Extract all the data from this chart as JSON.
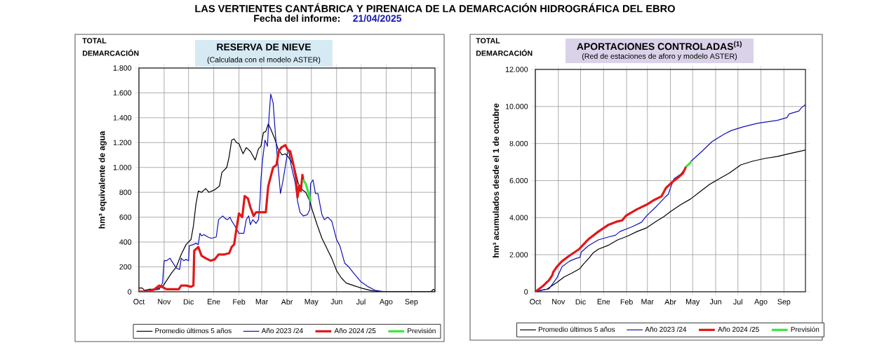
{
  "chart_data": [
    {
      "type": "line",
      "title": "RESERVA DE NIEVE",
      "subtitle": "(Calculada con el modelo ASTER)",
      "ylabel": "hm³ equivalente de agua",
      "annotations": [
        "LAS VERTIENTES CANTÁBRICA Y PIRENAICA DE LA DEMARCACIÓN HIDROGRÁFICA DEL EBRO",
        "Fecha del informe:",
        "21/04/2025",
        "TOTAL DEMARCACIÓN"
      ],
      "xlim": [
        "2024-10-01",
        "2025-09-30"
      ],
      "xticks": [
        {
          "value": "2024-10-01",
          "label": "Oct"
        },
        {
          "value": "2024-11-01",
          "label": "Nov"
        },
        {
          "value": "2024-12-01",
          "label": "Dic"
        },
        {
          "value": "2025-01-01",
          "label": "Ene"
        },
        {
          "value": "2025-02-01",
          "label": "Feb"
        },
        {
          "value": "2025-03-01",
          "label": "Mar"
        },
        {
          "value": "2025-04-01",
          "label": "Abr"
        },
        {
          "value": "2025-05-01",
          "label": "May"
        },
        {
          "value": "2025-06-01",
          "label": "Jun"
        },
        {
          "value": "2025-07-01",
          "label": "Jul"
        },
        {
          "value": "2025-08-01",
          "label": "Ago"
        },
        {
          "value": "2025-09-01",
          "label": "Sep"
        }
      ],
      "ylim": [
        0,
        1800
      ],
      "yticks": [
        {
          "value": 0,
          "label": "0"
        },
        {
          "value": 200,
          "label": "200"
        },
        {
          "value": 400,
          "label": "400"
        },
        {
          "value": 600,
          "label": "600"
        },
        {
          "value": 800,
          "label": "800"
        },
        {
          "value": 1000,
          "label": "1.000"
        },
        {
          "value": 1200,
          "label": "1.200"
        },
        {
          "value": 1400,
          "label": "1.400"
        },
        {
          "value": 1600,
          "label": "1.600"
        },
        {
          "value": 1800,
          "label": "1.800"
        }
      ],
      "grid": true,
      "legend": "bottom",
      "series": [
        {
          "name": "Promedio últimos 5 años",
          "color": "#000000",
          "x": [
            "2024-10-01",
            "2024-10-05",
            "2024-10-08",
            "2024-10-14",
            "2024-10-20",
            "2024-10-26",
            "2024-10-31",
            "2024-11-05",
            "2024-11-10",
            "2024-11-16",
            "2024-11-22",
            "2024-11-28",
            "2024-12-04",
            "2024-12-07",
            "2024-12-10",
            "2024-12-13",
            "2024-12-17",
            "2024-12-22",
            "2024-12-26",
            "2025-01-02",
            "2025-01-08",
            "2025-01-11",
            "2025-01-17",
            "2025-01-20",
            "2025-01-23",
            "2025-01-26",
            "2025-01-29",
            "2025-02-01",
            "2025-02-06",
            "2025-02-10",
            "2025-02-15",
            "2025-02-21",
            "2025-02-25",
            "2025-02-28",
            "2025-03-03",
            "2025-03-06",
            "2025-03-09",
            "2025-03-12",
            "2025-03-17",
            "2025-03-21",
            "2025-03-26",
            "2025-03-30",
            "2025-04-02",
            "2025-04-07",
            "2025-04-11",
            "2025-04-15",
            "2025-04-20",
            "2025-04-24",
            "2025-04-29",
            "2025-05-02",
            "2025-05-08",
            "2025-05-14",
            "2025-05-20",
            "2025-05-26",
            "2025-06-01",
            "2025-06-07",
            "2025-06-13",
            "2025-06-22",
            "2025-07-01",
            "2025-07-13",
            "2025-07-24",
            "2025-07-30",
            "2025-09-25",
            "2025-09-28",
            "2025-09-30"
          ],
          "values": [
            30,
            30,
            10,
            20,
            20,
            30,
            50,
            100,
            150,
            200,
            300,
            380,
            420,
            530,
            700,
            810,
            800,
            830,
            800,
            820,
            850,
            960,
            1000,
            1090,
            1220,
            1230,
            1200,
            1190,
            1110,
            1160,
            1130,
            1060,
            1150,
            1170,
            1280,
            1290,
            1350,
            1310,
            1230,
            1150,
            1100,
            1110,
            1090,
            1040,
            980,
            870,
            820,
            800,
            730,
            660,
            540,
            430,
            350,
            270,
            170,
            110,
            70,
            50,
            30,
            10,
            0,
            0,
            0,
            20,
            10
          ]
        },
        {
          "name": "Año 2023 /24",
          "color": "#1010b8",
          "x": [
            "2024-10-01",
            "2024-10-17",
            "2024-10-26",
            "2024-10-30",
            "2024-11-01",
            "2024-11-04",
            "2024-11-08",
            "2024-11-11",
            "2024-11-16",
            "2024-11-20",
            "2024-11-22",
            "2024-11-25",
            "2024-11-28",
            "2024-12-01",
            "2024-12-02",
            "2024-12-07",
            "2024-12-10",
            "2024-12-13",
            "2024-12-15",
            "2024-12-17",
            "2024-12-20",
            "2024-12-25",
            "2024-12-29",
            "2025-01-04",
            "2025-01-07",
            "2025-01-12",
            "2025-01-15",
            "2025-01-18",
            "2025-01-21",
            "2025-01-23",
            "2025-01-26",
            "2025-02-01",
            "2025-02-07",
            "2025-02-10",
            "2025-02-13",
            "2025-02-15",
            "2025-02-18",
            "2025-02-22",
            "2025-02-25",
            "2025-02-27",
            "2025-02-28",
            "2025-03-02",
            "2025-03-05",
            "2025-03-08",
            "2025-03-10",
            "2025-03-12",
            "2025-03-15",
            "2025-03-18",
            "2025-03-21",
            "2025-03-24",
            "2025-03-27",
            "2025-04-02",
            "2025-04-03",
            "2025-04-06",
            "2025-04-11",
            "2025-04-14",
            "2025-04-17",
            "2025-04-21",
            "2025-04-26",
            "2025-04-29",
            "2025-04-30",
            "2025-05-03",
            "2025-05-06",
            "2025-05-09",
            "2025-05-14",
            "2025-05-17",
            "2025-05-21",
            "2025-05-26",
            "2025-06-01",
            "2025-06-05",
            "2025-06-11",
            "2025-06-16",
            "2025-06-22",
            "2025-07-01",
            "2025-07-10",
            "2025-07-19",
            "2025-07-31",
            "2025-08-06",
            "2025-09-25",
            "2025-09-28",
            "2025-09-30"
          ],
          "values": [
            0,
            10,
            20,
            70,
            250,
            250,
            270,
            240,
            190,
            180,
            270,
            250,
            260,
            250,
            370,
            380,
            390,
            380,
            470,
            450,
            460,
            440,
            430,
            440,
            580,
            610,
            590,
            580,
            600,
            570,
            540,
            470,
            470,
            580,
            610,
            540,
            580,
            550,
            580,
            750,
            900,
            1060,
            1220,
            1170,
            1410,
            1590,
            1520,
            1250,
            1020,
            790,
            890,
            1130,
            1140,
            1020,
            880,
            730,
            640,
            610,
            620,
            660,
            870,
            900,
            790,
            790,
            620,
            580,
            600,
            570,
            420,
            370,
            230,
            200,
            150,
            80,
            40,
            10,
            0,
            0,
            0,
            0,
            0
          ]
        },
        {
          "name": "Año 2024 /25",
          "color": "#e01818",
          "x": [
            "2024-10-01",
            "2024-10-11",
            "2024-10-20",
            "2024-10-26",
            "2024-10-29",
            "2024-11-04",
            "2024-11-13",
            "2024-11-19",
            "2024-11-22",
            "2024-11-28",
            "2024-12-04",
            "2024-12-07",
            "2024-12-08",
            "2024-12-13",
            "2024-12-17",
            "2024-12-22",
            "2024-12-28",
            "2025-01-02",
            "2025-01-07",
            "2025-01-14",
            "2025-01-20",
            "2025-01-23",
            "2025-01-26",
            "2025-01-29",
            "2025-02-01",
            "2025-02-05",
            "2025-02-08",
            "2025-02-12",
            "2025-02-15",
            "2025-02-19",
            "2025-02-22",
            "2025-02-28",
            "2025-03-06",
            "2025-03-09",
            "2025-03-11",
            "2025-03-15",
            "2025-03-19",
            "2025-03-22",
            "2025-03-25",
            "2025-03-30",
            "2025-04-02",
            "2025-04-05",
            "2025-04-09",
            "2025-04-12",
            "2025-04-14",
            "2025-04-16",
            "2025-04-18",
            "2025-04-20",
            "2025-04-21"
          ],
          "values": [
            0,
            0,
            20,
            50,
            40,
            20,
            20,
            20,
            50,
            50,
            40,
            50,
            330,
            360,
            290,
            270,
            250,
            260,
            300,
            300,
            310,
            360,
            380,
            510,
            630,
            600,
            770,
            750,
            680,
            610,
            640,
            640,
            640,
            850,
            900,
            1000,
            1020,
            1130,
            1160,
            1180,
            1140,
            1130,
            1020,
            920,
            760,
            850,
            810,
            940,
            900
          ]
        },
        {
          "name": "Previsión",
          "color": "#3ce63c",
          "x": [
            "2025-04-21",
            "2025-04-24",
            "2025-04-28",
            "2025-04-30"
          ],
          "values": [
            900,
            870,
            780,
            730
          ]
        }
      ]
    },
    {
      "type": "line",
      "title": "APORTACIONES CONTROLADAS$^{(1)}$",
      "subtitle": "(Red de estaciones de aforo y modelo ASTER)",
      "ylabel": "hm³ acumulados desde el 1 de octubre",
      "annotations": [
        "TOTAL DEMARCACIÓN"
      ],
      "xlim": [
        "2024-10-01",
        "2025-09-30"
      ],
      "xticks": [
        {
          "value": "2024-10-01",
          "label": "Oct"
        },
        {
          "value": "2024-11-01",
          "label": "Nov"
        },
        {
          "value": "2024-12-01",
          "label": "Dic"
        },
        {
          "value": "2025-01-01",
          "label": "Ene"
        },
        {
          "value": "2025-02-01",
          "label": "Feb"
        },
        {
          "value": "2025-03-01",
          "label": "Mar"
        },
        {
          "value": "2025-04-01",
          "label": "Abr"
        },
        {
          "value": "2025-05-01",
          "label": "May"
        },
        {
          "value": "2025-06-01",
          "label": "Jun"
        },
        {
          "value": "2025-07-01",
          "label": "Jul"
        },
        {
          "value": "2025-08-01",
          "label": "Ago"
        },
        {
          "value": "2025-09-01",
          "label": "Sep"
        }
      ],
      "ylim": [
        0,
        12000
      ],
      "yticks": [
        {
          "value": 0,
          "label": "0"
        },
        {
          "value": 2000,
          "label": "2.000"
        },
        {
          "value": 4000,
          "label": "4.000"
        },
        {
          "value": 6000,
          "label": "6.000"
        },
        {
          "value": 8000,
          "label": "8.000"
        },
        {
          "value": 10000,
          "label": "10.000"
        },
        {
          "value": 12000,
          "label": "12.000"
        }
      ],
      "grid": true,
      "legend": "bottom",
      "series": [
        {
          "name": "Promedio últimos 5 años",
          "color": "#000000",
          "x": [
            "2024-10-01",
            "2024-10-17",
            "2024-10-30",
            "2024-11-09",
            "2024-11-19",
            "2024-11-30",
            "2024-12-05",
            "2024-12-12",
            "2024-12-18",
            "2024-12-25",
            "2025-01-07",
            "2025-01-20",
            "2025-02-02",
            "2025-02-15",
            "2025-02-28",
            "2025-03-13",
            "2025-03-23",
            "2025-04-02",
            "2025-04-15",
            "2025-04-28",
            "2025-05-11",
            "2025-05-24",
            "2025-06-06",
            "2025-06-19",
            "2025-07-05",
            "2025-07-21",
            "2025-08-07",
            "2025-08-23",
            "2025-09-08",
            "2025-09-25",
            "2025-09-30"
          ],
          "values": [
            0,
            150,
            500,
            800,
            1000,
            1250,
            1500,
            1800,
            2100,
            2300,
            2500,
            2800,
            3000,
            3250,
            3450,
            3800,
            4050,
            4350,
            4700,
            5000,
            5400,
            5800,
            6100,
            6400,
            6850,
            7050,
            7200,
            7300,
            7450,
            7600,
            7650
          ]
        },
        {
          "name": "Año 2023 /24",
          "color": "#1010b8",
          "x": [
            "2024-10-01",
            "2024-10-11",
            "2024-10-19",
            "2024-10-22",
            "2024-10-30",
            "2024-11-06",
            "2024-11-16",
            "2024-11-25",
            "2024-11-30",
            "2024-12-02",
            "2024-12-12",
            "2024-12-25",
            "2025-01-07",
            "2025-01-17",
            "2025-01-23",
            "2025-02-08",
            "2025-02-21",
            "2025-02-28",
            "2025-03-13",
            "2025-03-26",
            "2025-03-29",
            "2025-04-02",
            "2025-04-06",
            "2025-04-15",
            "2025-04-29",
            "2025-05-14",
            "2025-05-27",
            "2025-06-12",
            "2025-06-22",
            "2025-07-08",
            "2025-07-28",
            "2025-08-23",
            "2025-09-05",
            "2025-09-08",
            "2025-09-21",
            "2025-09-25",
            "2025-09-30"
          ],
          "values": [
            0,
            100,
            150,
            300,
            750,
            1350,
            1650,
            1800,
            1850,
            2150,
            2500,
            2800,
            2950,
            3050,
            3250,
            3500,
            3750,
            4100,
            4600,
            5150,
            5250,
            5700,
            6100,
            6350,
            7050,
            7600,
            8100,
            8500,
            8700,
            8900,
            9100,
            9250,
            9400,
            9600,
            9750,
            9950,
            10100
          ]
        },
        {
          "name": "Año 2024 /25",
          "color": "#e01818",
          "x": [
            "2024-10-01",
            "2024-10-11",
            "2024-10-16",
            "2024-10-19",
            "2024-10-24",
            "2024-10-25",
            "2024-10-30",
            "2024-11-06",
            "2024-11-16",
            "2024-11-29",
            "2024-12-12",
            "2024-12-25",
            "2025-01-07",
            "2025-01-20",
            "2025-01-26",
            "2025-01-31",
            "2025-02-15",
            "2025-02-28",
            "2025-03-10",
            "2025-03-20",
            "2025-03-26",
            "2025-04-03",
            "2025-04-11",
            "2025-04-18",
            "2025-04-22"
          ],
          "values": [
            0,
            300,
            500,
            600,
            900,
            1050,
            1350,
            1650,
            1950,
            2300,
            2850,
            3250,
            3600,
            3800,
            3850,
            4100,
            4450,
            4700,
            4950,
            5150,
            5600,
            5900,
            6150,
            6400,
            6750
          ]
        },
        {
          "name": "Previsión",
          "color": "#3ce63c",
          "x": [
            "2025-04-22",
            "2025-04-25",
            "2025-04-29"
          ],
          "values": [
            6750,
            6850,
            7000
          ]
        }
      ]
    }
  ]
}
